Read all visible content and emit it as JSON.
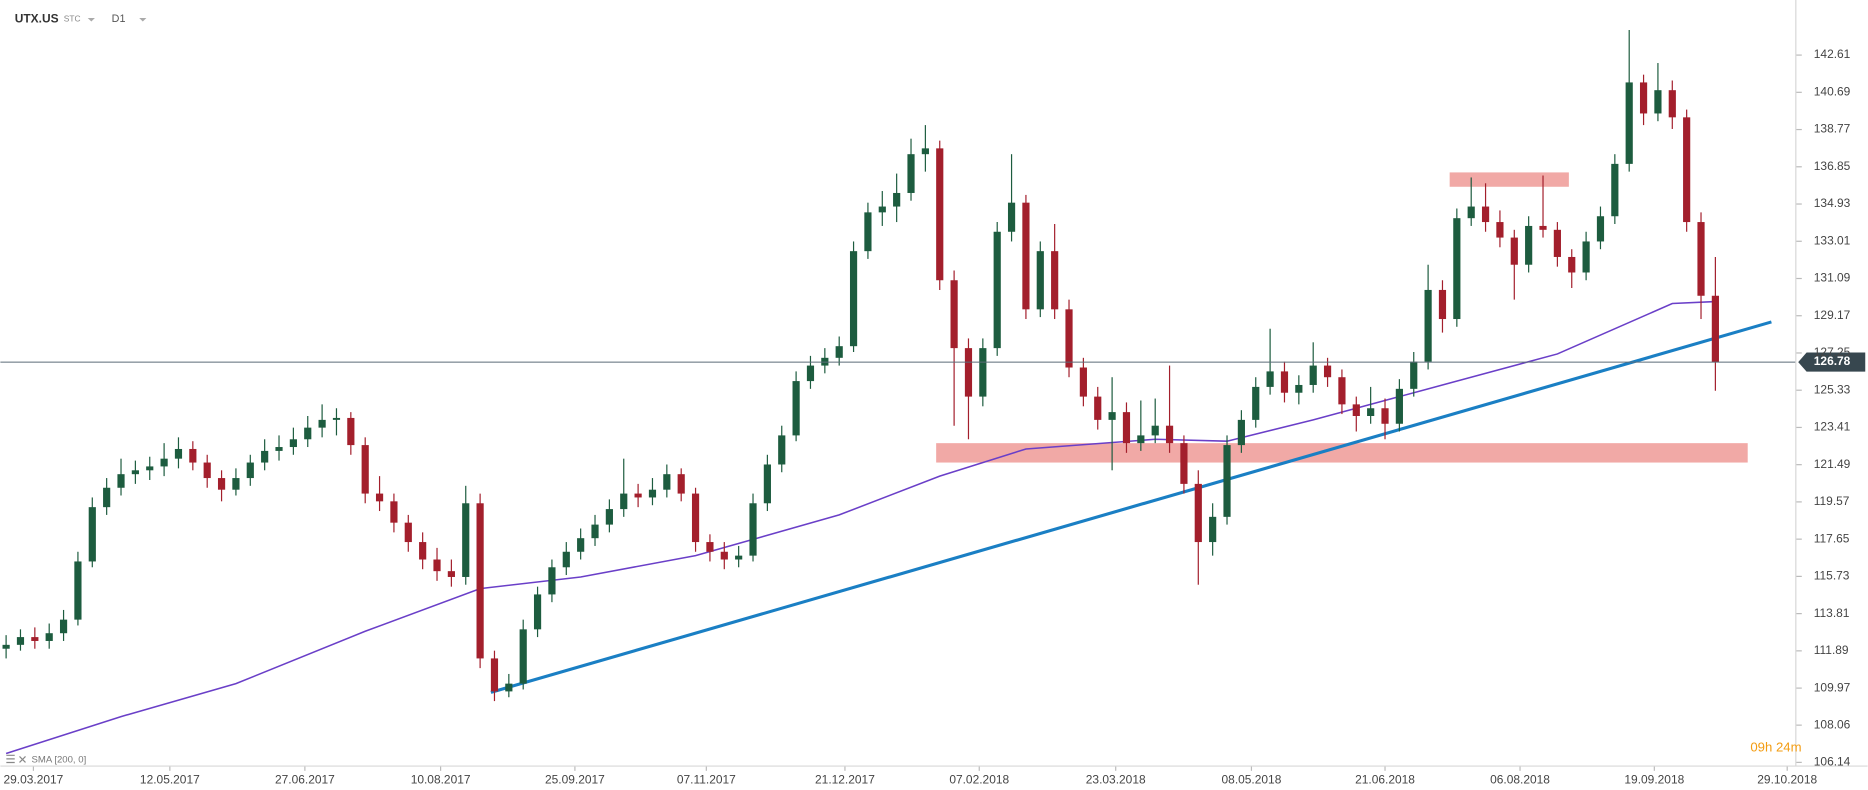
{
  "chart_data": {
    "type": "candlestick",
    "symbol": "UTX.US",
    "instrument_type": "STC",
    "interval": "D1",
    "indicator": "SMA [200, 0]",
    "timer": "09h 24m",
    "up_color": "#1d5c3f",
    "down_color": "#a31f2c",
    "xlim": [
      -0.4,
      124.6
    ],
    "ylim": [
      105.95,
      145.45
    ],
    "yticks": [
      142.61,
      140.69,
      138.77,
      136.85,
      134.93,
      133.01,
      131.09,
      129.17,
      127.25,
      125.33,
      123.41,
      121.49,
      119.57,
      117.65,
      115.73,
      113.81,
      111.89,
      109.97,
      108.06,
      106.14
    ],
    "xticks": [
      {
        "value": 1.9,
        "label": "29.03.2017"
      },
      {
        "value": 11.4,
        "label": "12.05.2017"
      },
      {
        "value": 20.8,
        "label": "27.06.2017"
      },
      {
        "value": 30.25,
        "label": "10.08.2017"
      },
      {
        "value": 39.6,
        "label": "25.09.2017"
      },
      {
        "value": 48.75,
        "label": "07.11.2017"
      },
      {
        "value": 58.4,
        "label": "21.12.2017"
      },
      {
        "value": 67.75,
        "label": "07.02.2018"
      },
      {
        "value": 77.25,
        "label": "23.03.2018"
      },
      {
        "value": 86.7,
        "label": "08.05.2018"
      },
      {
        "value": 96,
        "label": "21.06.2018"
      },
      {
        "value": 105.4,
        "label": "06.08.2018"
      },
      {
        "value": 114.75,
        "label": "19.09.2018"
      },
      {
        "value": 124,
        "label": "29.10.2018"
      }
    ],
    "ohlc": [
      [
        112.0,
        112.7,
        111.5,
        112.2
      ],
      [
        112.2,
        113.0,
        111.9,
        112.6
      ],
      [
        112.6,
        113.1,
        112.0,
        112.4
      ],
      [
        112.4,
        113.3,
        112.0,
        112.8
      ],
      [
        112.8,
        114.0,
        112.4,
        113.5
      ],
      [
        113.5,
        117.0,
        113.2,
        116.5
      ],
      [
        116.5,
        119.8,
        116.2,
        119.3
      ],
      [
        119.3,
        120.8,
        118.9,
        120.3
      ],
      [
        120.3,
        121.8,
        119.9,
        121.0
      ],
      [
        121.0,
        121.7,
        120.5,
        121.2
      ],
      [
        121.2,
        121.9,
        120.7,
        121.4
      ],
      [
        121.4,
        122.6,
        120.9,
        121.8
      ],
      [
        121.8,
        122.9,
        121.3,
        122.3
      ],
      [
        122.3,
        122.7,
        121.2,
        121.6
      ],
      [
        121.6,
        122.0,
        120.3,
        120.8
      ],
      [
        120.8,
        121.2,
        119.6,
        120.2
      ],
      [
        120.2,
        121.3,
        119.9,
        120.8
      ],
      [
        120.8,
        122.0,
        120.4,
        121.6
      ],
      [
        121.6,
        122.8,
        121.2,
        122.2
      ],
      [
        122.2,
        123.0,
        121.7,
        122.4
      ],
      [
        122.4,
        123.4,
        122.0,
        122.8
      ],
      [
        122.8,
        124.0,
        122.4,
        123.4
      ],
      [
        123.4,
        124.6,
        122.9,
        123.8
      ],
      [
        123.8,
        124.4,
        123.0,
        123.9
      ],
      [
        123.9,
        124.2,
        122.0,
        122.5
      ],
      [
        122.5,
        122.9,
        119.5,
        120.0
      ],
      [
        120.0,
        120.9,
        119.1,
        119.6
      ],
      [
        119.6,
        120.0,
        118.0,
        118.5
      ],
      [
        118.5,
        118.9,
        117.0,
        117.5
      ],
      [
        117.5,
        118.0,
        116.1,
        116.6
      ],
      [
        116.6,
        117.2,
        115.5,
        116.0
      ],
      [
        116.0,
        116.6,
        115.2,
        115.7
      ],
      [
        115.7,
        120.4,
        115.3,
        119.5
      ],
      [
        119.5,
        120.0,
        111.0,
        111.5
      ],
      [
        111.5,
        111.9,
        109.3,
        109.8
      ],
      [
        109.8,
        110.7,
        109.5,
        110.2
      ],
      [
        110.2,
        113.5,
        109.9,
        113.0
      ],
      [
        113.0,
        115.2,
        112.6,
        114.8
      ],
      [
        114.8,
        116.6,
        114.4,
        116.2
      ],
      [
        116.2,
        117.5,
        115.8,
        117.0
      ],
      [
        117.0,
        118.2,
        116.6,
        117.7
      ],
      [
        117.7,
        118.9,
        117.3,
        118.4
      ],
      [
        118.4,
        119.7,
        118.0,
        119.2
      ],
      [
        119.2,
        121.8,
        118.8,
        120.0
      ],
      [
        120.0,
        120.5,
        119.3,
        119.8
      ],
      [
        119.8,
        120.8,
        119.4,
        120.2
      ],
      [
        120.2,
        121.5,
        119.8,
        121.0
      ],
      [
        121.0,
        121.3,
        119.6,
        120.0
      ],
      [
        120.0,
        120.3,
        117.0,
        117.5
      ],
      [
        117.5,
        117.9,
        116.5,
        117.0
      ],
      [
        117.0,
        117.5,
        116.1,
        116.6
      ],
      [
        116.6,
        117.3,
        116.2,
        116.8
      ],
      [
        116.8,
        120.0,
        116.5,
        119.5
      ],
      [
        119.5,
        122.0,
        119.1,
        121.5
      ],
      [
        121.5,
        123.5,
        121.1,
        123.0
      ],
      [
        123.0,
        126.3,
        122.7,
        125.8
      ],
      [
        125.8,
        127.1,
        125.4,
        126.6
      ],
      [
        126.6,
        127.5,
        126.2,
        127.0
      ],
      [
        127.0,
        128.1,
        126.6,
        127.6
      ],
      [
        127.6,
        133.0,
        127.3,
        132.5
      ],
      [
        132.5,
        135.0,
        132.1,
        134.5
      ],
      [
        134.5,
        135.6,
        133.8,
        134.8
      ],
      [
        134.8,
        136.5,
        134.0,
        135.5
      ],
      [
        135.5,
        138.3,
        135.1,
        137.5
      ],
      [
        137.5,
        139.0,
        136.6,
        137.8
      ],
      [
        137.8,
        138.2,
        130.5,
        131.0
      ],
      [
        131.0,
        131.5,
        123.5,
        127.5
      ],
      [
        127.5,
        128.0,
        122.8,
        125.0
      ],
      [
        125.0,
        128.0,
        124.5,
        127.5
      ],
      [
        127.5,
        134.0,
        127.1,
        133.5
      ],
      [
        133.5,
        137.5,
        133.0,
        135.0
      ],
      [
        135.0,
        135.4,
        129.0,
        129.5
      ],
      [
        129.5,
        133.0,
        129.1,
        132.5
      ],
      [
        132.5,
        133.9,
        129.0,
        129.5
      ],
      [
        129.5,
        130.0,
        126.0,
        126.5
      ],
      [
        126.5,
        127.0,
        124.5,
        125.0
      ],
      [
        125.0,
        125.5,
        123.3,
        123.8
      ],
      [
        123.8,
        126.0,
        121.2,
        124.2
      ],
      [
        124.2,
        124.7,
        122.1,
        122.6
      ],
      [
        122.6,
        124.8,
        122.2,
        123.0
      ],
      [
        123.0,
        124.9,
        122.6,
        123.5
      ],
      [
        123.5,
        126.6,
        122.1,
        122.6
      ],
      [
        122.6,
        123.0,
        120.0,
        120.5
      ],
      [
        120.5,
        121.2,
        115.3,
        117.5
      ],
      [
        117.5,
        119.5,
        116.8,
        118.8
      ],
      [
        118.8,
        123.0,
        118.4,
        122.5
      ],
      [
        122.5,
        124.3,
        122.1,
        123.8
      ],
      [
        123.8,
        126.0,
        123.4,
        125.5
      ],
      [
        125.5,
        128.5,
        125.1,
        126.3
      ],
      [
        126.3,
        126.8,
        124.7,
        125.2
      ],
      [
        125.2,
        126.1,
        124.6,
        125.6
      ],
      [
        125.6,
        127.8,
        125.2,
        126.6
      ],
      [
        126.6,
        127.0,
        125.5,
        126.0
      ],
      [
        126.0,
        126.4,
        124.1,
        124.6
      ],
      [
        124.6,
        125.0,
        123.2,
        124.0
      ],
      [
        124.0,
        125.5,
        123.6,
        124.4
      ],
      [
        124.4,
        124.9,
        122.8,
        123.6
      ],
      [
        123.6,
        125.9,
        123.2,
        125.4
      ],
      [
        125.4,
        127.3,
        125.0,
        126.8
      ],
      [
        126.8,
        131.8,
        126.4,
        130.5
      ],
      [
        130.5,
        131.0,
        128.3,
        129.0
      ],
      [
        129.0,
        134.7,
        128.6,
        134.2
      ],
      [
        134.2,
        136.3,
        133.8,
        134.8
      ],
      [
        134.8,
        136.0,
        133.5,
        134.0
      ],
      [
        134.0,
        134.6,
        132.7,
        133.2
      ],
      [
        133.2,
        133.6,
        130.0,
        131.8
      ],
      [
        131.8,
        134.3,
        131.4,
        133.8
      ],
      [
        133.8,
        136.4,
        133.2,
        133.6
      ],
      [
        133.6,
        134.0,
        131.7,
        132.2
      ],
      [
        132.2,
        132.6,
        130.6,
        131.4
      ],
      [
        131.4,
        133.5,
        131.0,
        133.0
      ],
      [
        133.0,
        134.8,
        132.6,
        134.3
      ],
      [
        134.3,
        137.5,
        133.9,
        137.0
      ],
      [
        137.0,
        143.9,
        136.6,
        141.2
      ],
      [
        141.2,
        141.6,
        139.0,
        139.6
      ],
      [
        139.6,
        142.2,
        139.2,
        140.8
      ],
      [
        140.8,
        141.3,
        138.8,
        139.4
      ],
      [
        139.4,
        139.8,
        133.5,
        134.0
      ],
      [
        134.0,
        134.5,
        129.0,
        130.2
      ],
      [
        130.2,
        132.2,
        125.3,
        126.78
      ]
    ],
    "sma": {
      "color": "#6a3fc8",
      "x": [
        0,
        8,
        16,
        25,
        33,
        40,
        48,
        58,
        65,
        71,
        80,
        85,
        91,
        99,
        108,
        116,
        119
      ],
      "values": [
        106.6,
        108.5,
        110.2,
        112.9,
        115.1,
        115.7,
        116.8,
        118.9,
        120.9,
        122.3,
        122.8,
        122.7,
        123.8,
        125.4,
        127.2,
        129.8,
        129.9
      ]
    },
    "trendline": {
      "color": "#1a7fc4",
      "x": [
        33.75,
        122.9
      ],
      "values": [
        109.75,
        128.85
      ]
    },
    "zones": [
      {
        "color": "#f0a09c",
        "x": [
          64.75,
          121.25
        ],
        "y": [
          122.6,
          121.6
        ]
      },
      {
        "color": "#f0a09c",
        "x": [
          100.5,
          108.8
        ],
        "y": [
          136.56,
          135.82
        ]
      }
    ],
    "last_price": 126.78
  }
}
